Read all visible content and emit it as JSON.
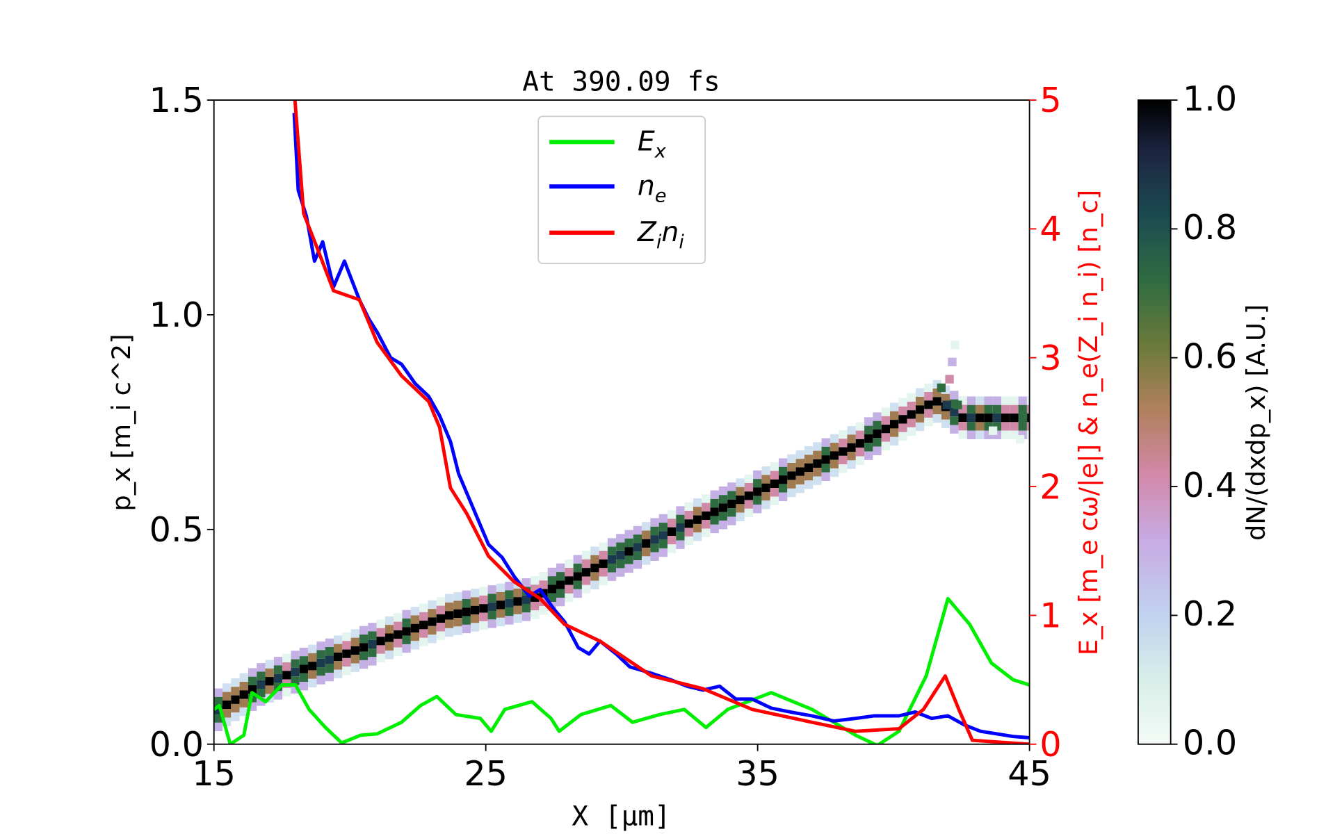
{
  "chart_data": {
    "type": "line",
    "title": "At 390.09 fs",
    "xlabel": "X [μm]",
    "ylabel_left": "p_x [m_i c^2]",
    "ylabel_right": "E_x [m_e cω/|e|] & n_e(Z_i n_i) [n_c]",
    "colorbar_label": "dN/(dxdp_x) [A.U.]",
    "xlim": [
      15,
      45
    ],
    "ylim_left": [
      0,
      1.5
    ],
    "ylim_right": [
      0,
      5
    ],
    "colorbar_lim": [
      0,
      1
    ],
    "xticks": [
      "15",
      "25",
      "35",
      "45"
    ],
    "yticks_left": [
      "0.0",
      "0.5",
      "1.0",
      "1.5"
    ],
    "yticks_right": [
      "0",
      "1",
      "2",
      "3",
      "4",
      "5"
    ],
    "colorbar_ticks": [
      "0.0",
      "0.2",
      "0.4",
      "0.6",
      "0.8",
      "1.0"
    ],
    "colormap": "cubehelix_r",
    "right_axis_color": "#ff0000",
    "legend": {
      "placement": "upper-center",
      "entries": [
        "E_x",
        "n_e",
        "Z_i n_i"
      ]
    },
    "series": [
      {
        "name": "E_x",
        "color": "#00ee00",
        "axis": "right",
        "x": [
          15,
          15.2,
          15.6,
          16.1,
          16.4,
          16.9,
          17.5,
          18,
          18.5,
          19.1,
          19.7,
          20.4,
          21,
          21.9,
          22.6,
          23.2,
          23.9,
          24.8,
          25.2,
          25.7,
          26.7,
          27.4,
          27.7,
          28.5,
          29.6,
          30.4,
          31.4,
          32.3,
          33.1,
          33.9,
          35.5,
          37,
          38.6,
          39.4,
          40.2,
          41.2,
          42,
          42.8,
          43.6,
          44.4,
          45
        ],
        "y": [
          0.27,
          0.3,
          0,
          0.07,
          0.4,
          0.33,
          0.46,
          0.46,
          0.27,
          0.13,
          0.01,
          0.07,
          0.08,
          0.17,
          0.3,
          0.37,
          0.23,
          0.2,
          0.1,
          0.27,
          0.33,
          0.2,
          0.1,
          0.23,
          0.3,
          0.17,
          0.23,
          0.27,
          0.13,
          0.27,
          0.4,
          0.27,
          0.07,
          -0.01,
          0.1,
          0.53,
          1.13,
          0.93,
          0.63,
          0.5,
          0.46
        ]
      },
      {
        "name": "n_e",
        "color": "#0000ff",
        "axis": "right",
        "x": [
          17.95,
          18.1,
          18.4,
          18.7,
          19.0,
          19.4,
          19.8,
          20.35,
          20.7,
          21,
          21.5,
          21.9,
          22.4,
          22.9,
          23.3,
          23.7,
          24.0,
          24.4,
          25.1,
          25.6,
          26.05,
          26.6,
          27,
          27.5,
          27.9,
          28.4,
          28.8,
          29.2,
          29.8,
          30.3,
          31.1,
          31.8,
          32.4,
          33,
          33.6,
          34.2,
          34.8,
          35.5,
          36.2,
          37,
          37.8,
          38.6,
          39.3,
          40.2,
          40.8,
          41.4,
          42,
          42.6,
          43.2,
          43.8,
          44.4,
          45
        ],
        "y": [
          4.9,
          4.3,
          4.1,
          3.75,
          3.9,
          3.55,
          3.75,
          3.45,
          3.3,
          3.2,
          3.0,
          2.95,
          2.8,
          2.7,
          2.55,
          2.35,
          2.1,
          1.9,
          1.55,
          1.45,
          1.3,
          1.15,
          1.2,
          1.05,
          0.95,
          0.75,
          0.7,
          0.8,
          0.7,
          0.6,
          0.55,
          0.5,
          0.45,
          0.42,
          0.45,
          0.35,
          0.35,
          0.28,
          0.25,
          0.22,
          0.18,
          0.2,
          0.22,
          0.22,
          0.25,
          0.2,
          0.22,
          0.15,
          0.1,
          0.08,
          0.06,
          0.05
        ]
      },
      {
        "name": "Z_i n_i",
        "color": "#ff0000",
        "axis": "right",
        "x": [
          17.98,
          18.3,
          18.8,
          19.4,
          20.35,
          21,
          21.9,
          22.9,
          23.3,
          23.7,
          24.3,
          25.1,
          26.05,
          27,
          27.9,
          29.2,
          31.1,
          33,
          34.8,
          37,
          38.6,
          40.2,
          41.1,
          41.9,
          42.4,
          42.9,
          45
        ],
        "y": [
          5,
          4.12,
          3.85,
          3.52,
          3.45,
          3.12,
          2.86,
          2.66,
          2.46,
          1.99,
          1.79,
          1.46,
          1.26,
          1.13,
          0.93,
          0.8,
          0.53,
          0.43,
          0.27,
          0.17,
          0.1,
          0.12,
          0.27,
          0.53,
          0.27,
          0.03,
          0
        ]
      }
    ],
    "phase_space_ridge": {
      "axis": "left",
      "x": [
        15,
        16.6,
        19.7,
        23.5,
        26.6,
        29.8,
        33.9,
        38.6,
        41.4,
        42.4,
        45
      ],
      "p": [
        0.08,
        0.14,
        0.21,
        0.3,
        0.34,
        0.44,
        0.56,
        0.7,
        0.8,
        0.76,
        0.76
      ]
    }
  }
}
